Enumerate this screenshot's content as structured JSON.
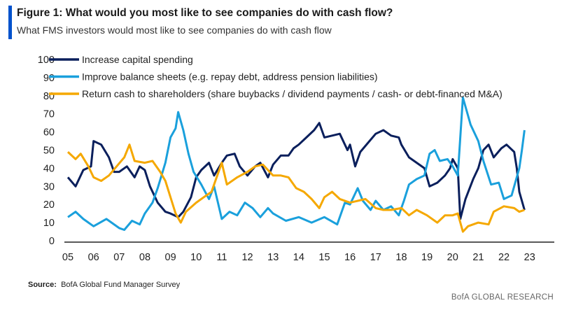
{
  "title": "Figure 1: What would you most like to see companies do with cash flow?",
  "subtitle": "What FMS investors would most like to see companies do with cash flow",
  "source_label": "Source:",
  "source_text": "BofA Global Fund Manager Survey",
  "brand": "BofA GLOBAL RESEARCH",
  "chart_data": {
    "type": "line",
    "title": "",
    "xlabel": "",
    "ylabel": "",
    "ylim": [
      0,
      100
    ],
    "xlim": [
      2005,
      2023
    ],
    "yticks": [
      0,
      10,
      20,
      30,
      40,
      50,
      60,
      70,
      80,
      90,
      100
    ],
    "xtick_labels": [
      "05",
      "06",
      "07",
      "08",
      "09",
      "10",
      "11",
      "12",
      "13",
      "14",
      "15",
      "16",
      "17",
      "18",
      "19",
      "20",
      "21",
      "22",
      "23"
    ],
    "grid": false,
    "legend_placement": "top-left",
    "series": [
      {
        "name": "Increase capital spending",
        "color": "#0a1f5c",
        "points": [
          [
            2005.0,
            35
          ],
          [
            2005.3,
            30
          ],
          [
            2005.6,
            39
          ],
          [
            2005.9,
            41
          ],
          [
            2006.0,
            55
          ],
          [
            2006.3,
            53
          ],
          [
            2006.6,
            46
          ],
          [
            2006.8,
            38
          ],
          [
            2007.0,
            38
          ],
          [
            2007.3,
            41
          ],
          [
            2007.6,
            35
          ],
          [
            2007.8,
            41
          ],
          [
            2008.0,
            39
          ],
          [
            2008.2,
            30
          ],
          [
            2008.5,
            21
          ],
          [
            2008.8,
            16
          ],
          [
            2009.0,
            15
          ],
          [
            2009.3,
            13
          ],
          [
            2009.5,
            16
          ],
          [
            2009.8,
            24
          ],
          [
            2010.0,
            35
          ],
          [
            2010.2,
            39
          ],
          [
            2010.5,
            43
          ],
          [
            2010.7,
            36
          ],
          [
            2011.0,
            43
          ],
          [
            2011.2,
            47
          ],
          [
            2011.5,
            48
          ],
          [
            2011.7,
            41
          ],
          [
            2012.0,
            36
          ],
          [
            2012.3,
            41
          ],
          [
            2012.5,
            43
          ],
          [
            2012.8,
            35
          ],
          [
            2013.0,
            42
          ],
          [
            2013.3,
            47
          ],
          [
            2013.6,
            47
          ],
          [
            2013.8,
            51
          ],
          [
            2014.0,
            53
          ],
          [
            2014.3,
            57
          ],
          [
            2014.6,
            61
          ],
          [
            2014.8,
            65
          ],
          [
            2015.0,
            57
          ],
          [
            2015.3,
            58
          ],
          [
            2015.6,
            59
          ],
          [
            2015.9,
            50
          ],
          [
            2016.0,
            53
          ],
          [
            2016.2,
            41
          ],
          [
            2016.4,
            49
          ],
          [
            2016.7,
            54
          ],
          [
            2017.0,
            59
          ],
          [
            2017.3,
            61
          ],
          [
            2017.6,
            58
          ],
          [
            2017.9,
            57
          ],
          [
            2018.0,
            53
          ],
          [
            2018.3,
            46
          ],
          [
            2018.6,
            43
          ],
          [
            2018.9,
            40
          ],
          [
            2019.1,
            30
          ],
          [
            2019.4,
            32
          ],
          [
            2019.7,
            36
          ],
          [
            2019.9,
            40
          ],
          [
            2020.0,
            45
          ],
          [
            2020.2,
            40
          ],
          [
            2020.3,
            12
          ],
          [
            2020.5,
            23
          ],
          [
            2020.8,
            34
          ],
          [
            2021.0,
            40
          ],
          [
            2021.2,
            50
          ],
          [
            2021.4,
            53
          ],
          [
            2021.6,
            46
          ],
          [
            2021.9,
            51
          ],
          [
            2022.1,
            53
          ],
          [
            2022.4,
            49
          ],
          [
            2022.5,
            40
          ],
          [
            2022.6,
            27
          ],
          [
            2022.8,
            17
          ]
        ]
      },
      {
        "name": "Improve balance sheets (e.g. repay debt, address pension liabilities)",
        "color": "#1aa0dc",
        "points": [
          [
            2005.0,
            13
          ],
          [
            2005.3,
            16
          ],
          [
            2005.6,
            12
          ],
          [
            2006.0,
            8
          ],
          [
            2006.5,
            12
          ],
          [
            2007.0,
            7
          ],
          [
            2007.2,
            6
          ],
          [
            2007.5,
            11
          ],
          [
            2007.8,
            9
          ],
          [
            2008.0,
            15
          ],
          [
            2008.3,
            21
          ],
          [
            2008.5,
            29
          ],
          [
            2008.8,
            43
          ],
          [
            2009.0,
            57
          ],
          [
            2009.2,
            62
          ],
          [
            2009.3,
            71
          ],
          [
            2009.5,
            61
          ],
          [
            2009.7,
            48
          ],
          [
            2009.9,
            38
          ],
          [
            2010.2,
            31
          ],
          [
            2010.5,
            23
          ],
          [
            2010.7,
            30
          ],
          [
            2011.0,
            12
          ],
          [
            2011.3,
            16
          ],
          [
            2011.6,
            14
          ],
          [
            2011.9,
            21
          ],
          [
            2012.2,
            18
          ],
          [
            2012.5,
            13
          ],
          [
            2012.8,
            18
          ],
          [
            2013.0,
            15
          ],
          [
            2013.5,
            11
          ],
          [
            2014.0,
            13
          ],
          [
            2014.5,
            10
          ],
          [
            2015.0,
            13
          ],
          [
            2015.5,
            9
          ],
          [
            2015.8,
            21
          ],
          [
            2016.0,
            20
          ],
          [
            2016.3,
            29
          ],
          [
            2016.5,
            22
          ],
          [
            2016.8,
            17
          ],
          [
            2017.0,
            22
          ],
          [
            2017.3,
            17
          ],
          [
            2017.6,
            19
          ],
          [
            2017.9,
            14
          ],
          [
            2018.1,
            22
          ],
          [
            2018.3,
            31
          ],
          [
            2018.6,
            34
          ],
          [
            2018.9,
            36
          ],
          [
            2019.1,
            48
          ],
          [
            2019.3,
            50
          ],
          [
            2019.5,
            44
          ],
          [
            2019.8,
            45
          ],
          [
            2020.0,
            41
          ],
          [
            2020.2,
            36
          ],
          [
            2020.4,
            79
          ],
          [
            2020.7,
            64
          ],
          [
            2021.0,
            55
          ],
          [
            2021.2,
            44
          ],
          [
            2021.5,
            31
          ],
          [
            2021.8,
            32
          ],
          [
            2022.0,
            23
          ],
          [
            2022.3,
            25
          ],
          [
            2022.6,
            40
          ],
          [
            2022.7,
            50
          ],
          [
            2022.8,
            61
          ]
        ]
      },
      {
        "name": "Return cash to shareholders (share buybacks / dividend payments / cash- or debt-financed M&A)",
        "color": "#f5a800",
        "points": [
          [
            2005.0,
            49
          ],
          [
            2005.3,
            45
          ],
          [
            2005.5,
            48
          ],
          [
            2005.8,
            41
          ],
          [
            2006.0,
            35
          ],
          [
            2006.3,
            33
          ],
          [
            2006.6,
            36
          ],
          [
            2006.9,
            41
          ],
          [
            2007.2,
            46
          ],
          [
            2007.4,
            53
          ],
          [
            2007.6,
            44
          ],
          [
            2008.0,
            43
          ],
          [
            2008.3,
            44
          ],
          [
            2008.6,
            38
          ],
          [
            2008.8,
            33
          ],
          [
            2009.0,
            24
          ],
          [
            2009.2,
            15
          ],
          [
            2009.4,
            10
          ],
          [
            2009.6,
            16
          ],
          [
            2010.0,
            21
          ],
          [
            2010.3,
            24
          ],
          [
            2010.6,
            27
          ],
          [
            2011.0,
            43
          ],
          [
            2011.2,
            31
          ],
          [
            2011.6,
            35
          ],
          [
            2012.0,
            38
          ],
          [
            2012.3,
            41
          ],
          [
            2012.6,
            42
          ],
          [
            2013.0,
            36
          ],
          [
            2013.3,
            36
          ],
          [
            2013.6,
            35
          ],
          [
            2013.9,
            29
          ],
          [
            2014.2,
            27
          ],
          [
            2014.5,
            23
          ],
          [
            2014.8,
            18
          ],
          [
            2015.0,
            24
          ],
          [
            2015.3,
            27
          ],
          [
            2015.6,
            23
          ],
          [
            2016.0,
            21
          ],
          [
            2016.3,
            22
          ],
          [
            2016.6,
            23
          ],
          [
            2017.0,
            18
          ],
          [
            2017.3,
            17
          ],
          [
            2017.6,
            17
          ],
          [
            2018.0,
            18
          ],
          [
            2018.3,
            14
          ],
          [
            2018.6,
            17
          ],
          [
            2019.0,
            14
          ],
          [
            2019.4,
            10
          ],
          [
            2019.7,
            14
          ],
          [
            2020.0,
            14
          ],
          [
            2020.2,
            15
          ],
          [
            2020.4,
            5
          ],
          [
            2020.6,
            8
          ],
          [
            2021.0,
            10
          ],
          [
            2021.4,
            9
          ],
          [
            2021.6,
            16
          ],
          [
            2022.0,
            19
          ],
          [
            2022.4,
            18
          ],
          [
            2022.6,
            16
          ],
          [
            2022.8,
            17
          ]
        ]
      }
    ]
  }
}
